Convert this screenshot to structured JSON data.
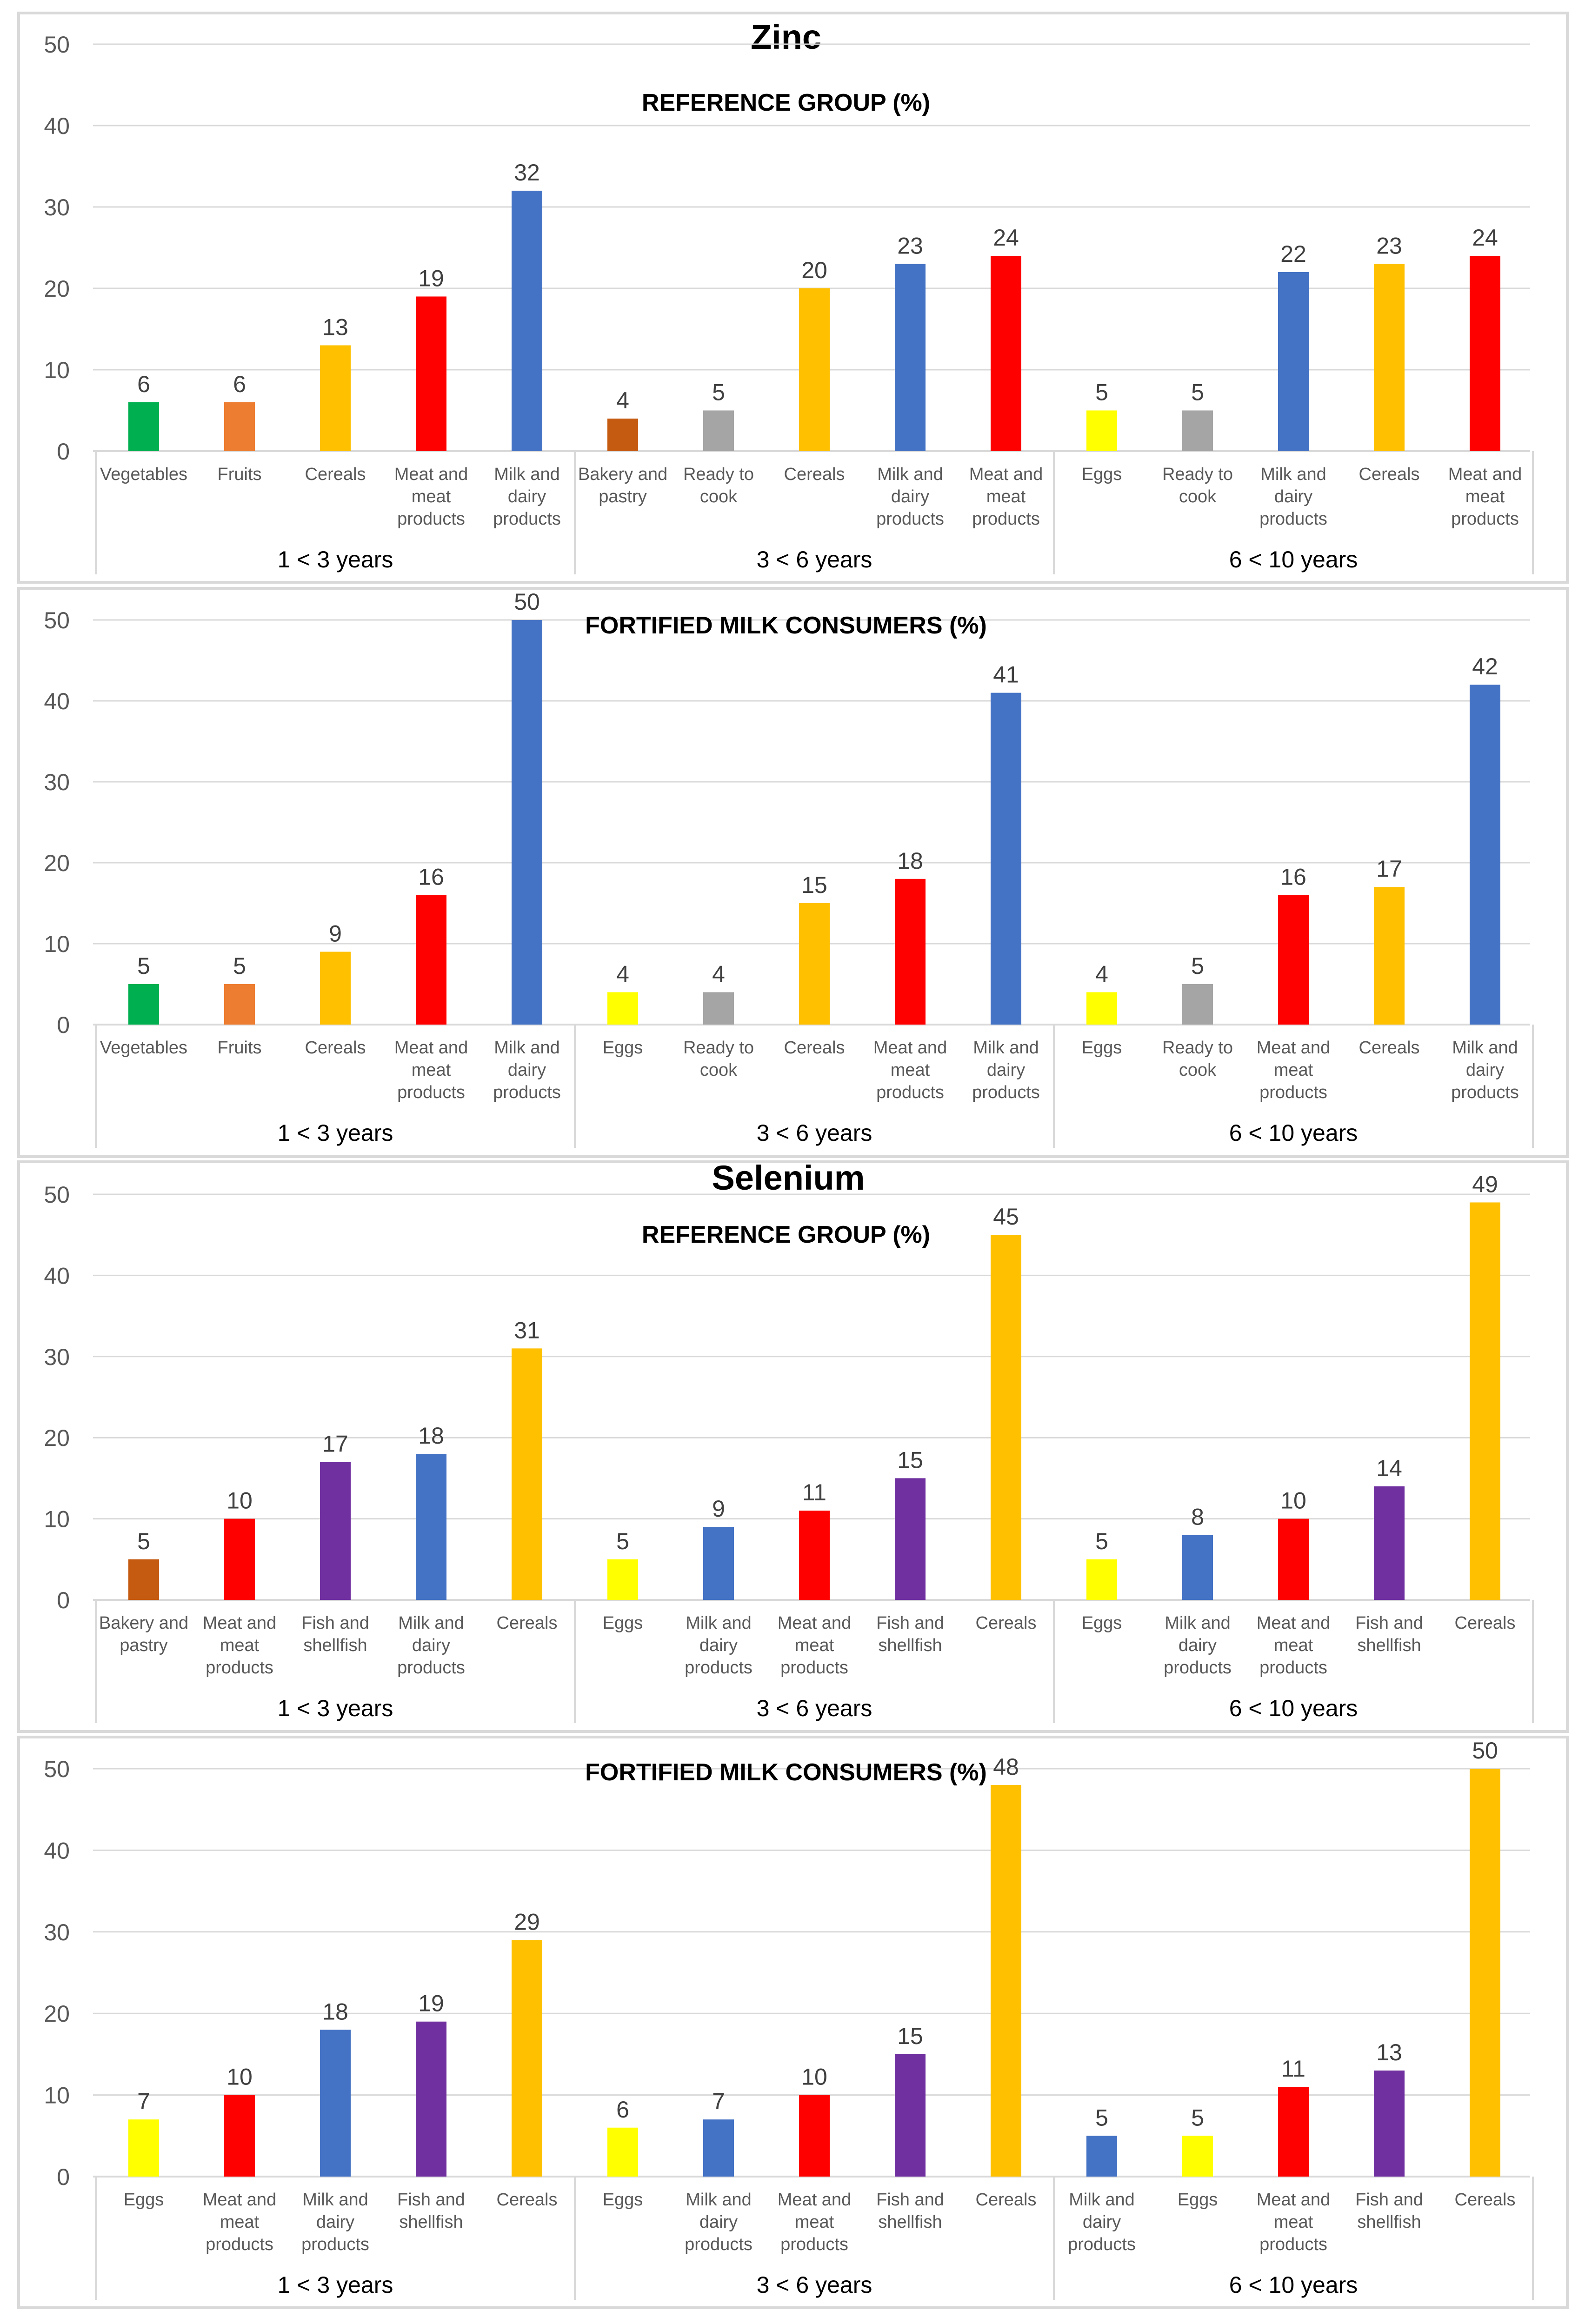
{
  "sections": {
    "zinc": "Zinc",
    "selenium": "Selenium"
  },
  "chart_data": [
    {
      "type": "bar",
      "title": "REFERENCE GROUP (%)",
      "section": "Zinc",
      "ylim": [
        0,
        50
      ],
      "yticks": [
        0,
        10,
        20,
        30,
        40,
        50
      ],
      "groups": [
        {
          "label": "1 < 3 years",
          "bars": [
            {
              "category": "Vegetables",
              "value": 6,
              "color": "#00B050"
            },
            {
              "category": "Fruits",
              "value": 6,
              "color": "#ED7D31"
            },
            {
              "category": "Cereals",
              "value": 13,
              "color": "#FFC000"
            },
            {
              "category": "Meat and meat products",
              "value": 19,
              "color": "#FF0000"
            },
            {
              "category": "Milk and dairy products",
              "value": 32,
              "color": "#4472C4"
            }
          ]
        },
        {
          "label": "3 < 6 years",
          "bars": [
            {
              "category": "Bakery and pastry",
              "value": 4,
              "color": "#C55A11"
            },
            {
              "category": "Ready to cook",
              "value": 5,
              "color": "#A5A5A5"
            },
            {
              "category": "Cereals",
              "value": 20,
              "color": "#FFC000"
            },
            {
              "category": "Milk and dairy products",
              "value": 23,
              "color": "#4472C4"
            },
            {
              "category": "Meat and meat products",
              "value": 24,
              "color": "#FF0000"
            }
          ]
        },
        {
          "label": "6 < 10 years",
          "bars": [
            {
              "category": "Eggs",
              "value": 5,
              "color": "#FFFF00"
            },
            {
              "category": "Ready to cook",
              "value": 5,
              "color": "#A5A5A5"
            },
            {
              "category": "Milk and dairy products",
              "value": 22,
              "color": "#4472C4"
            },
            {
              "category": "Cereals",
              "value": 23,
              "color": "#FFC000"
            },
            {
              "category": "Meat and meat products",
              "value": 24,
              "color": "#FF0000"
            }
          ]
        }
      ]
    },
    {
      "type": "bar",
      "title": "FORTIFIED MILK CONSUMERS (%)",
      "section": "Zinc",
      "ylim": [
        0,
        50
      ],
      "yticks": [
        0,
        10,
        20,
        30,
        40,
        50
      ],
      "groups": [
        {
          "label": "1 < 3 years",
          "bars": [
            {
              "category": "Vegetables",
              "value": 5,
              "color": "#00B050"
            },
            {
              "category": "Fruits",
              "value": 5,
              "color": "#ED7D31"
            },
            {
              "category": "Cereals",
              "value": 9,
              "color": "#FFC000"
            },
            {
              "category": "Meat and meat products",
              "value": 16,
              "color": "#FF0000"
            },
            {
              "category": "Milk and dairy products",
              "value": 50,
              "color": "#4472C4"
            }
          ]
        },
        {
          "label": "3 < 6 years",
          "bars": [
            {
              "category": "Eggs",
              "value": 4,
              "color": "#FFFF00"
            },
            {
              "category": "Ready to cook",
              "value": 4,
              "color": "#A5A5A5"
            },
            {
              "category": "Cereals",
              "value": 15,
              "color": "#FFC000"
            },
            {
              "category": "Meat and meat products",
              "value": 18,
              "color": "#FF0000"
            },
            {
              "category": "Milk and dairy products",
              "value": 41,
              "color": "#4472C4"
            }
          ]
        },
        {
          "label": "6 < 10 years",
          "bars": [
            {
              "category": "Eggs",
              "value": 4,
              "color": "#FFFF00"
            },
            {
              "category": "Ready to cook",
              "value": 5,
              "color": "#A5A5A5"
            },
            {
              "category": "Meat and meat products",
              "value": 16,
              "color": "#FF0000"
            },
            {
              "category": "Cereals",
              "value": 17,
              "color": "#FFC000"
            },
            {
              "category": "Milk and dairy products",
              "value": 42,
              "color": "#4472C4"
            }
          ]
        }
      ]
    },
    {
      "type": "bar",
      "title": "REFERENCE GROUP (%)",
      "section": "Selenium",
      "ylim": [
        0,
        50
      ],
      "yticks": [
        0,
        10,
        20,
        30,
        40,
        50
      ],
      "groups": [
        {
          "label": "1 < 3 years",
          "bars": [
            {
              "category": "Bakery and pastry",
              "value": 5,
              "color": "#C55A11"
            },
            {
              "category": "Meat and meat products",
              "value": 10,
              "color": "#FF0000"
            },
            {
              "category": "Fish and shellfish",
              "value": 17,
              "color": "#7030A0"
            },
            {
              "category": "Milk and dairy products",
              "value": 18,
              "color": "#4472C4"
            },
            {
              "category": "Cereals",
              "value": 31,
              "color": "#FFC000"
            }
          ]
        },
        {
          "label": "3 < 6 years",
          "bars": [
            {
              "category": "Eggs",
              "value": 5,
              "color": "#FFFF00"
            },
            {
              "category": "Milk and dairy products",
              "value": 9,
              "color": "#4472C4"
            },
            {
              "category": "Meat and meat products",
              "value": 11,
              "color": "#FF0000"
            },
            {
              "category": "Fish and shellfish",
              "value": 15,
              "color": "#7030A0"
            },
            {
              "category": "Cereals",
              "value": 45,
              "color": "#FFC000"
            }
          ]
        },
        {
          "label": "6 < 10 years",
          "bars": [
            {
              "category": "Eggs",
              "value": 5,
              "color": "#FFFF00"
            },
            {
              "category": "Milk and dairy products",
              "value": 8,
              "color": "#4472C4"
            },
            {
              "category": "Meat and meat products",
              "value": 10,
              "color": "#FF0000"
            },
            {
              "category": "Fish and shellfish",
              "value": 14,
              "color": "#7030A0"
            },
            {
              "category": "Cereals",
              "value": 49,
              "color": "#FFC000"
            }
          ]
        }
      ]
    },
    {
      "type": "bar",
      "title": "FORTIFIED MILK CONSUMERS (%)",
      "section": "Selenium",
      "ylim": [
        0,
        50
      ],
      "yticks": [
        0,
        10,
        20,
        30,
        40,
        50
      ],
      "groups": [
        {
          "label": "1 < 3 years",
          "bars": [
            {
              "category": "Eggs",
              "value": 7,
              "color": "#FFFF00"
            },
            {
              "category": "Meat and meat products",
              "value": 10,
              "color": "#FF0000"
            },
            {
              "category": "Milk and dairy products",
              "value": 18,
              "color": "#4472C4"
            },
            {
              "category": "Fish and shellfish",
              "value": 19,
              "color": "#7030A0"
            },
            {
              "category": "Cereals",
              "value": 29,
              "color": "#FFC000"
            }
          ]
        },
        {
          "label": "3 < 6 years",
          "bars": [
            {
              "category": "Eggs",
              "value": 6,
              "color": "#FFFF00"
            },
            {
              "category": "Milk and dairy products",
              "value": 7,
              "color": "#4472C4"
            },
            {
              "category": "Meat and meat products",
              "value": 10,
              "color": "#FF0000"
            },
            {
              "category": "Fish and shellfish",
              "value": 15,
              "color": "#7030A0"
            },
            {
              "category": "Cereals",
              "value": 48,
              "color": "#FFC000"
            }
          ]
        },
        {
          "label": "6 < 10 years",
          "bars": [
            {
              "category": "Milk and dairy products",
              "value": 5,
              "color": "#4472C4"
            },
            {
              "category": "Eggs",
              "value": 5,
              "color": "#FFFF00"
            },
            {
              "category": "Meat and meat products",
              "value": 11,
              "color": "#FF0000"
            },
            {
              "category": "Fish and shellfish",
              "value": 13,
              "color": "#7030A0"
            },
            {
              "category": "Cereals",
              "value": 50,
              "color": "#FFC000"
            }
          ]
        }
      ]
    }
  ]
}
